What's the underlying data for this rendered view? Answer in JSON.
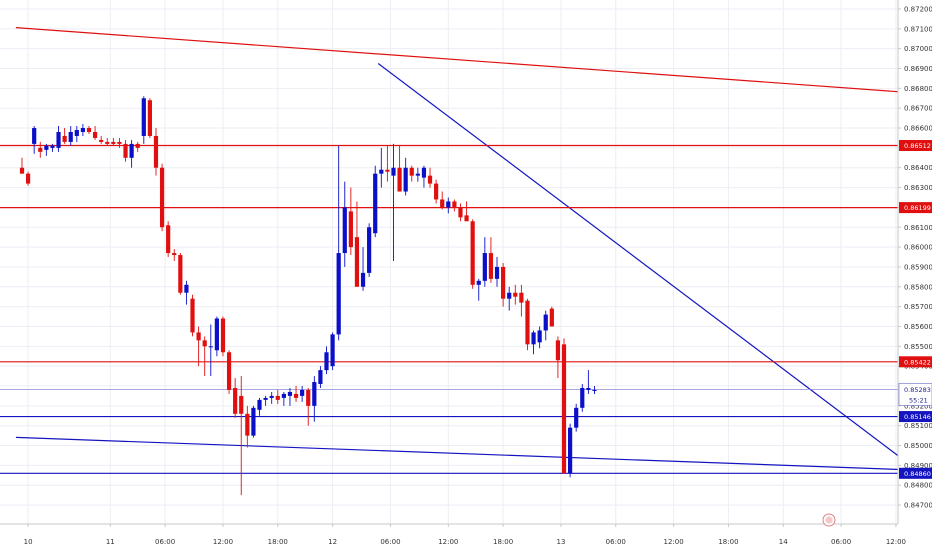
{
  "chart_data": {
    "type": "candlestick",
    "colors": {
      "bull": "#0b10c8",
      "bear": "#e01010",
      "grid": "#eceef5",
      "axis": "#c8c8c8",
      "hline_red": "#e01010",
      "hline_blue": "#1414c0",
      "trend_red": "#e01010",
      "trend_blue": "#1414c0",
      "current_price": "#8a8ad8"
    },
    "ylim": [
      0.8466,
      0.8722
    ],
    "y_ticks": [
      "0.87200",
      "0.87100",
      "0.87000",
      "0.86900",
      "0.86800",
      "0.86700",
      "0.86600",
      "0.86500",
      "0.86400",
      "0.86300",
      "0.86200",
      "0.86100",
      "0.86000",
      "0.85900",
      "0.85800",
      "0.85700",
      "0.85600",
      "0.85500",
      "0.85400",
      "0.85300",
      "0.85200",
      "0.85100",
      "0.85000",
      "0.84900",
      "0.84800",
      "0.84700"
    ],
    "xlim": [
      -1,
      147
    ],
    "x_ticks": [
      {
        "label": "10",
        "x": 1
      },
      {
        "label": "11",
        "x": 14.5
      },
      {
        "label": "06:00",
        "x": 23.5
      },
      {
        "label": "12:00",
        "x": 33
      },
      {
        "label": "18:00",
        "x": 42
      },
      {
        "label": "12",
        "x": 51
      },
      {
        "label": "06:00",
        "x": 60.5
      },
      {
        "label": "12:00",
        "x": 70
      },
      {
        "label": "18:00",
        "x": 79
      },
      {
        "label": "13",
        "x": 88.5
      },
      {
        "label": "06:00",
        "x": 97.5
      },
      {
        "label": "12:00",
        "x": 107
      },
      {
        "label": "18:00",
        "x": 116
      },
      {
        "label": "14",
        "x": 125
      },
      {
        "label": "06:00",
        "x": 134.5
      },
      {
        "label": "12:00",
        "x": 143.5
      }
    ],
    "horizontal_lines": [
      {
        "value": 0.86512,
        "label": "0.86512",
        "color": "red"
      },
      {
        "value": 0.86199,
        "label": "0.86199",
        "color": "red"
      },
      {
        "value": 0.85422,
        "label": "0.85422",
        "color": "red"
      },
      {
        "value": 0.85146,
        "label": "0.85146",
        "color": "blue"
      },
      {
        "value": 0.8486,
        "label": "0.84860",
        "color": "blue"
      }
    ],
    "current_price": {
      "value": 0.85283,
      "label": "0.85283",
      "countdown": "55:21"
    },
    "trendlines": [
      {
        "color": "red",
        "x1": -1,
        "y1": 0.87106,
        "x2": 147,
        "y2": 0.86776
      },
      {
        "color": "blue",
        "x1": 58.5,
        "y1": 0.86925,
        "x2": 147,
        "y2": 0.84876
      },
      {
        "color": "blue",
        "x1": -1,
        "y1": 0.85041,
        "x2": 147,
        "y2": 0.84876
      }
    ],
    "candles": [
      {
        "o": 0.864,
        "h": 0.8645,
        "l": 0.8637,
        "c": 0.8637
      },
      {
        "o": 0.8637,
        "h": 0.8638,
        "l": 0.8631,
        "c": 0.8632
      },
      {
        "o": 0.8652,
        "h": 0.8661,
        "l": 0.8647,
        "c": 0.866
      },
      {
        "o": 0.865,
        "h": 0.8653,
        "l": 0.8645,
        "c": 0.8648
      },
      {
        "o": 0.8649,
        "h": 0.8652,
        "l": 0.8646,
        "c": 0.8651
      },
      {
        "o": 0.865,
        "h": 0.8652,
        "l": 0.8648,
        "c": 0.8651
      },
      {
        "o": 0.865,
        "h": 0.8661,
        "l": 0.8648,
        "c": 0.8658
      },
      {
        "o": 0.8656,
        "h": 0.866,
        "l": 0.8652,
        "c": 0.8653
      },
      {
        "o": 0.8653,
        "h": 0.8661,
        "l": 0.8651,
        "c": 0.8658
      },
      {
        "o": 0.8656,
        "h": 0.8661,
        "l": 0.8653,
        "c": 0.8659
      },
      {
        "o": 0.8658,
        "h": 0.8662,
        "l": 0.8656,
        "c": 0.866
      },
      {
        "o": 0.866,
        "h": 0.8661,
        "l": 0.8657,
        "c": 0.8658
      },
      {
        "o": 0.8658,
        "h": 0.8661,
        "l": 0.8654,
        "c": 0.8655
      },
      {
        "o": 0.8654,
        "h": 0.8656,
        "l": 0.8652,
        "c": 0.8653
      },
      {
        "o": 0.8653,
        "h": 0.8655,
        "l": 0.8651,
        "c": 0.8652
      },
      {
        "o": 0.8653,
        "h": 0.8655,
        "l": 0.8651,
        "c": 0.8652
      },
      {
        "o": 0.8653,
        "h": 0.8655,
        "l": 0.865,
        "c": 0.8652
      },
      {
        "o": 0.8652,
        "h": 0.8654,
        "l": 0.8643,
        "c": 0.8645
      },
      {
        "o": 0.8645,
        "h": 0.8654,
        "l": 0.864,
        "c": 0.8652
      },
      {
        "o": 0.8652,
        "h": 0.8653,
        "l": 0.8648,
        "c": 0.865
      },
      {
        "o": 0.8656,
        "h": 0.8676,
        "l": 0.8652,
        "c": 0.8675
      },
      {
        "o": 0.8674,
        "h": 0.8675,
        "l": 0.8655,
        "c": 0.8656
      },
      {
        "o": 0.8656,
        "h": 0.866,
        "l": 0.8636,
        "c": 0.864
      },
      {
        "o": 0.864,
        "h": 0.8642,
        "l": 0.8608,
        "c": 0.861
      },
      {
        "o": 0.8611,
        "h": 0.8613,
        "l": 0.8595,
        "c": 0.8597
      },
      {
        "o": 0.8597,
        "h": 0.8599,
        "l": 0.8593,
        "c": 0.8596
      },
      {
        "o": 0.8596,
        "h": 0.8597,
        "l": 0.8576,
        "c": 0.8577
      },
      {
        "o": 0.8577,
        "h": 0.8583,
        "l": 0.8571,
        "c": 0.8581
      },
      {
        "o": 0.8574,
        "h": 0.8576,
        "l": 0.8555,
        "c": 0.8557
      },
      {
        "o": 0.8557,
        "h": 0.856,
        "l": 0.854,
        "c": 0.8553
      },
      {
        "o": 0.8553,
        "h": 0.8555,
        "l": 0.8535,
        "c": 0.855
      },
      {
        "o": 0.855,
        "h": 0.8561,
        "l": 0.8535,
        "c": 0.855
      },
      {
        "o": 0.8548,
        "h": 0.8565,
        "l": 0.8545,
        "c": 0.8564
      },
      {
        "o": 0.8564,
        "h": 0.8565,
        "l": 0.8545,
        "c": 0.8547
      },
      {
        "o": 0.8547,
        "h": 0.8548,
        "l": 0.8526,
        "c": 0.8528
      },
      {
        "o": 0.8529,
        "h": 0.8534,
        "l": 0.8514,
        "c": 0.8516
      },
      {
        "o": 0.8525,
        "h": 0.8535,
        "l": 0.8475,
        "c": 0.8516
      },
      {
        "o": 0.8516,
        "h": 0.852,
        "l": 0.8499,
        "c": 0.8505
      },
      {
        "o": 0.8505,
        "h": 0.852,
        "l": 0.8504,
        "c": 0.8519
      },
      {
        "o": 0.8518,
        "h": 0.8524,
        "l": 0.8515,
        "c": 0.8523
      },
      {
        "o": 0.8523,
        "h": 0.8525,
        "l": 0.852,
        "c": 0.8524
      },
      {
        "o": 0.8524,
        "h": 0.8527,
        "l": 0.8521,
        "c": 0.8525
      },
      {
        "o": 0.8525,
        "h": 0.8528,
        "l": 0.8521,
        "c": 0.8523
      },
      {
        "o": 0.8524,
        "h": 0.8527,
        "l": 0.852,
        "c": 0.8526
      },
      {
        "o": 0.8525,
        "h": 0.8529,
        "l": 0.852,
        "c": 0.8527
      },
      {
        "o": 0.8526,
        "h": 0.853,
        "l": 0.8522,
        "c": 0.8524
      },
      {
        "o": 0.8525,
        "h": 0.853,
        "l": 0.8522,
        "c": 0.8528
      },
      {
        "o": 0.8528,
        "h": 0.8529,
        "l": 0.851,
        "c": 0.852
      },
      {
        "o": 0.852,
        "h": 0.8535,
        "l": 0.8512,
        "c": 0.8532
      },
      {
        "o": 0.8531,
        "h": 0.854,
        "l": 0.8529,
        "c": 0.8538
      },
      {
        "o": 0.8538,
        "h": 0.855,
        "l": 0.8536,
        "c": 0.8547
      },
      {
        "o": 0.854,
        "h": 0.8557,
        "l": 0.8538,
        "c": 0.8556
      },
      {
        "o": 0.8556,
        "h": 0.8651,
        "l": 0.8553,
        "c": 0.8597
      },
      {
        "o": 0.8597,
        "h": 0.8633,
        "l": 0.859,
        "c": 0.862
      },
      {
        "o": 0.8618,
        "h": 0.863,
        "l": 0.8596,
        "c": 0.86
      },
      {
        "o": 0.8605,
        "h": 0.8623,
        "l": 0.858,
        "c": 0.858
      },
      {
        "o": 0.858,
        "h": 0.86,
        "l": 0.8578,
        "c": 0.8587
      },
      {
        "o": 0.8587,
        "h": 0.8612,
        "l": 0.8585,
        "c": 0.861
      },
      {
        "o": 0.8607,
        "h": 0.8641,
        "l": 0.8605,
        "c": 0.8637
      },
      {
        "o": 0.8637,
        "h": 0.865,
        "l": 0.863,
        "c": 0.8639
      },
      {
        "o": 0.8639,
        "h": 0.8651,
        "l": 0.8633,
        "c": 0.8638
      },
      {
        "o": 0.8636,
        "h": 0.8652,
        "l": 0.8593,
        "c": 0.864
      },
      {
        "o": 0.864,
        "h": 0.8651,
        "l": 0.863,
        "c": 0.8628
      },
      {
        "o": 0.8628,
        "h": 0.8645,
        "l": 0.8626,
        "c": 0.864
      },
      {
        "o": 0.864,
        "h": 0.8641,
        "l": 0.8633,
        "c": 0.8636
      },
      {
        "o": 0.8636,
        "h": 0.864,
        "l": 0.8633,
        "c": 0.8637
      },
      {
        "o": 0.8635,
        "h": 0.8641,
        "l": 0.863,
        "c": 0.864
      },
      {
        "o": 0.8636,
        "h": 0.864,
        "l": 0.863,
        "c": 0.8632
      },
      {
        "o": 0.8632,
        "h": 0.8634,
        "l": 0.8622,
        "c": 0.8624
      },
      {
        "o": 0.8624,
        "h": 0.8628,
        "l": 0.8619,
        "c": 0.862
      },
      {
        "o": 0.862,
        "h": 0.8625,
        "l": 0.8617,
        "c": 0.8623
      },
      {
        "o": 0.8623,
        "h": 0.8624,
        "l": 0.8618,
        "c": 0.862
      },
      {
        "o": 0.862,
        "h": 0.8622,
        "l": 0.8613,
        "c": 0.8615
      },
      {
        "o": 0.8616,
        "h": 0.8623,
        "l": 0.8614,
        "c": 0.8613
      },
      {
        "o": 0.8613,
        "h": 0.8614,
        "l": 0.8579,
        "c": 0.8581
      },
      {
        "o": 0.8581,
        "h": 0.8584,
        "l": 0.8573,
        "c": 0.8583
      },
      {
        "o": 0.8583,
        "h": 0.8605,
        "l": 0.858,
        "c": 0.8597
      },
      {
        "o": 0.8597,
        "h": 0.8605,
        "l": 0.8582,
        "c": 0.8584
      },
      {
        "o": 0.8584,
        "h": 0.8595,
        "l": 0.858,
        "c": 0.859
      },
      {
        "o": 0.859,
        "h": 0.8592,
        "l": 0.857,
        "c": 0.8574
      },
      {
        "o": 0.8574,
        "h": 0.858,
        "l": 0.8568,
        "c": 0.8577
      },
      {
        "o": 0.8577,
        "h": 0.8581,
        "l": 0.8571,
        "c": 0.8575
      },
      {
        "o": 0.8577,
        "h": 0.8581,
        "l": 0.8565,
        "c": 0.8572
      },
      {
        "o": 0.8573,
        "h": 0.8574,
        "l": 0.8548,
        "c": 0.8551
      },
      {
        "o": 0.8551,
        "h": 0.8558,
        "l": 0.8546,
        "c": 0.8557
      },
      {
        "o": 0.8552,
        "h": 0.856,
        "l": 0.8549,
        "c": 0.8558
      },
      {
        "o": 0.8558,
        "h": 0.8568,
        "l": 0.8553,
        "c": 0.8566
      },
      {
        "o": 0.8569,
        "h": 0.857,
        "l": 0.856,
        "c": 0.856
      },
      {
        "o": 0.8553,
        "h": 0.8555,
        "l": 0.8534,
        "c": 0.8543
      },
      {
        "o": 0.8551,
        "h": 0.8554,
        "l": 0.8486,
        "c": 0.8486
      },
      {
        "o": 0.8486,
        "h": 0.8511,
        "l": 0.8484,
        "c": 0.8509
      },
      {
        "o": 0.8509,
        "h": 0.8521,
        "l": 0.8507,
        "c": 0.8519
      },
      {
        "o": 0.8519,
        "h": 0.8531,
        "l": 0.8517,
        "c": 0.8529
      },
      {
        "o": 0.8528,
        "h": 0.8538,
        "l": 0.8526,
        "c": 0.8529
      },
      {
        "o": 0.8528,
        "h": 0.853,
        "l": 0.8526,
        "c": 0.8528
      }
    ],
    "candle_x_offset": 0
  }
}
